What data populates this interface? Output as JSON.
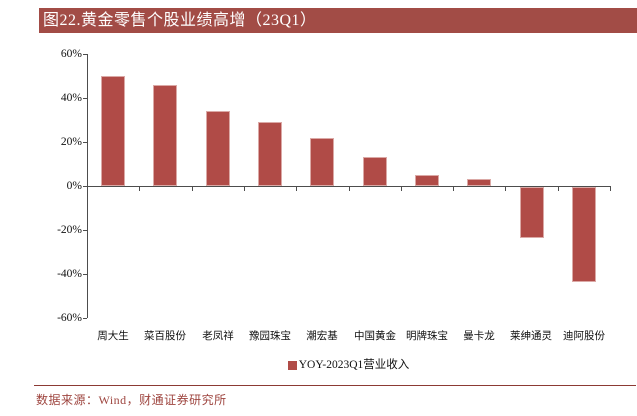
{
  "header": {
    "title": "图22.黄金零售个股业绩高增（23Q1）"
  },
  "legend": {
    "label": "YOY-2023Q1营业收入"
  },
  "footer": {
    "source": "数据来源：Wind，财通证券研究所"
  },
  "colors": {
    "title_bg": "#A24C46",
    "bar_fill": "#B04B47",
    "bar_border": "#DBA9A6",
    "axis": "#4D4D4D",
    "label_text": "#111111",
    "source_text": "#9E453F",
    "source_rule": "#8C3A34"
  },
  "chart_data": {
    "type": "bar",
    "title": "图22.黄金零售个股业绩高增（23Q1）",
    "categories": [
      "周大生",
      "菜百股份",
      "老凤祥",
      "豫园珠宝",
      "潮宏基",
      "中国黄金",
      "明牌珠宝",
      "曼卡龙",
      "莱绅通灵",
      "迪阿股份"
    ],
    "series": [
      {
        "name": "YOY-2023Q1营业收入",
        "values": [
          50,
          46,
          34,
          29,
          22,
          13,
          5,
          3,
          -23,
          -43
        ]
      }
    ],
    "xlabel": "",
    "ylabel": "",
    "ylim": [
      -60,
      60
    ],
    "ytick_step": 20,
    "ytick_labels": [
      "60%",
      "40%",
      "20%",
      "0%",
      "-20%",
      "-40%",
      "-60%"
    ],
    "grid": false,
    "legend_position": "bottom-center",
    "value_suffix": "%"
  }
}
